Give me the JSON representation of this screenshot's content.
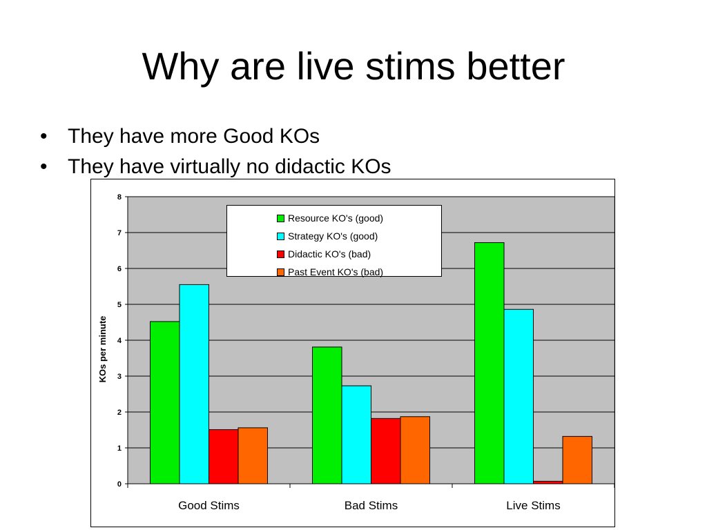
{
  "slide": {
    "title": "Why are live stims better",
    "bullet_glyph": "•",
    "bullets": [
      "They have more Good KOs",
      "They have virtually no didactic KOs"
    ]
  },
  "chart_data": {
    "type": "bar",
    "categories": [
      "Good Stims",
      "Bad Stims",
      "Live Stims"
    ],
    "series": [
      {
        "name": "Resource KO's (good)",
        "color": "#00ee00",
        "values": [
          4.52,
          3.81,
          6.72
        ]
      },
      {
        "name": "Strategy KO's (good)",
        "color": "#00ffff",
        "values": [
          5.55,
          2.73,
          4.86
        ]
      },
      {
        "name": "Didactic KO's (bad)",
        "color": "#ff0000",
        "values": [
          1.51,
          1.82,
          0.07
        ]
      },
      {
        "name": "Past Event KO's (bad)",
        "color": "#ff6600",
        "values": [
          1.56,
          1.87,
          1.32
        ]
      }
    ],
    "ylabel": "KOs per minute",
    "xlabel": "",
    "ylim": [
      0,
      8
    ],
    "yticks": [
      0,
      1,
      2,
      3,
      4,
      5,
      6,
      7,
      8
    ],
    "grid": true,
    "plot_background": "#c0c0c0",
    "legend_position": "top-center"
  }
}
